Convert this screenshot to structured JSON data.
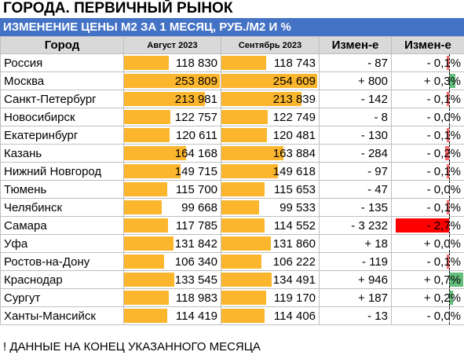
{
  "title": "ГОРОДА. ПЕРВИЧНЫЙ РЫНОК",
  "subtitle": "ИЗМЕНЕНИЕ ЦЕНЫ М2 ЗА 1 МЕСЯЦ, РУБ./М2 И %",
  "headers": [
    "Город",
    "Август 2023",
    "Сентябрь 2023",
    "Измен-е",
    "Измен-е"
  ],
  "colors": {
    "header_band": "#4472c4",
    "bar": "#fbb62d",
    "positive": "#63be7b",
    "negative": "#f8696b",
    "strong_negative": "#ff0000"
  },
  "table_data": {
    "type": "table",
    "bar_max": 254609,
    "rows": [
      {
        "city": "Россия",
        "aug": "118 830",
        "sep": "118 743",
        "aug_v": 118830,
        "sep_v": 118743,
        "chg": "- 87",
        "pct": "- 0,1%",
        "pct_v": -0.1
      },
      {
        "city": "Москва",
        "aug": "253 809",
        "sep": "254 609",
        "aug_v": 253809,
        "sep_v": 254609,
        "chg": "+ 800",
        "pct": "+ 0,3%",
        "pct_v": 0.3
      },
      {
        "city": "Санкт-Петербург",
        "aug": "213 981",
        "sep": "213 839",
        "aug_v": 213981,
        "sep_v": 213839,
        "chg": "- 142",
        "pct": "- 0,1%",
        "pct_v": -0.1
      },
      {
        "city": "Новосибирск",
        "aug": "122 757",
        "sep": "122 749",
        "aug_v": 122757,
        "sep_v": 122749,
        "chg": "- 8",
        "pct": "- 0,0%",
        "pct_v": 0.0
      },
      {
        "city": "Екатеринбург",
        "aug": "120 611",
        "sep": "120 481",
        "aug_v": 120611,
        "sep_v": 120481,
        "chg": "- 130",
        "pct": "- 0,1%",
        "pct_v": -0.1
      },
      {
        "city": "Казань",
        "aug": "164 168",
        "sep": "163 884",
        "aug_v": 164168,
        "sep_v": 163884,
        "chg": "- 284",
        "pct": "- 0,2%",
        "pct_v": -0.2
      },
      {
        "city": "Нижний Новгород",
        "aug": "149 715",
        "sep": "149 618",
        "aug_v": 149715,
        "sep_v": 149618,
        "chg": "- 97",
        "pct": "- 0,1%",
        "pct_v": -0.1
      },
      {
        "city": "Тюмень",
        "aug": "115 700",
        "sep": "115 653",
        "aug_v": 115700,
        "sep_v": 115653,
        "chg": "- 47",
        "pct": "- 0,0%",
        "pct_v": 0.0
      },
      {
        "city": "Челябинск",
        "aug": "99 668",
        "sep": "99 533",
        "aug_v": 99668,
        "sep_v": 99533,
        "chg": "- 135",
        "pct": "- 0,1%",
        "pct_v": -0.1
      },
      {
        "city": "Самара",
        "aug": "117 785",
        "sep": "114 552",
        "aug_v": 117785,
        "sep_v": 114552,
        "chg": "- 3 232",
        "pct": "- 2,7%",
        "pct_v": -2.7
      },
      {
        "city": "Уфа",
        "aug": "131 842",
        "sep": "131 860",
        "aug_v": 131842,
        "sep_v": 131860,
        "chg": "+ 18",
        "pct": "+ 0,0%",
        "pct_v": 0.0
      },
      {
        "city": "Ростов-на-Дону",
        "aug": "106 340",
        "sep": "106 222",
        "aug_v": 106340,
        "sep_v": 106222,
        "chg": "- 119",
        "pct": "- 0,1%",
        "pct_v": -0.1
      },
      {
        "city": "Краснодар",
        "aug": "133 545",
        "sep": "134 491",
        "aug_v": 133545,
        "sep_v": 134491,
        "chg": "+ 946",
        "pct": "+ 0,7%",
        "pct_v": 0.7
      },
      {
        "city": "Сургут",
        "aug": "118 983",
        "sep": "119 170",
        "aug_v": 118983,
        "sep_v": 119170,
        "chg": "+ 187",
        "pct": "+ 0,2%",
        "pct_v": 0.2
      },
      {
        "city": "Ханты-Мансийск",
        "aug": "114 419",
        "sep": "114 406",
        "aug_v": 114419,
        "sep_v": 114406,
        "chg": "- 13",
        "pct": "- 0,0%",
        "pct_v": 0.0
      }
    ]
  },
  "note": "! ДАННЫЕ НА КОНЕЦ УКАЗАННОГО МЕСЯЦА"
}
